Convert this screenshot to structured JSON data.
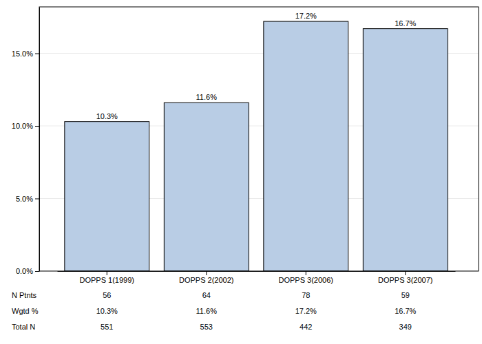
{
  "chart_data": {
    "type": "bar",
    "categories": [
      "DOPPS 1(1999)",
      "DOPPS 2(2002)",
      "DOPPS 3(2006)",
      "DOPPS 3(2007)"
    ],
    "values": [
      10.3,
      11.6,
      17.2,
      16.7
    ],
    "value_labels": [
      "10.3%",
      "11.6%",
      "17.2%",
      "16.7%"
    ],
    "color": "#b9cde5",
    "ylim": [
      0,
      18.2
    ],
    "yticks": [
      {
        "value": 0,
        "label": "0.0%"
      },
      {
        "value": 5,
        "label": "5.0%"
      },
      {
        "value": 10,
        "label": "10.0%"
      },
      {
        "value": 15,
        "label": "15.0%"
      }
    ],
    "grid": true,
    "data_labels": true
  },
  "table": {
    "rows": [
      {
        "label": "N Ptnts",
        "values": [
          56,
          64,
          78,
          59
        ]
      },
      {
        "label": "Wgtd %",
        "values": [
          "10.3%",
          "11.6%",
          "17.2%",
          "16.7%"
        ]
      },
      {
        "label": "Total N",
        "values": [
          551,
          553,
          442,
          349
        ]
      }
    ]
  }
}
